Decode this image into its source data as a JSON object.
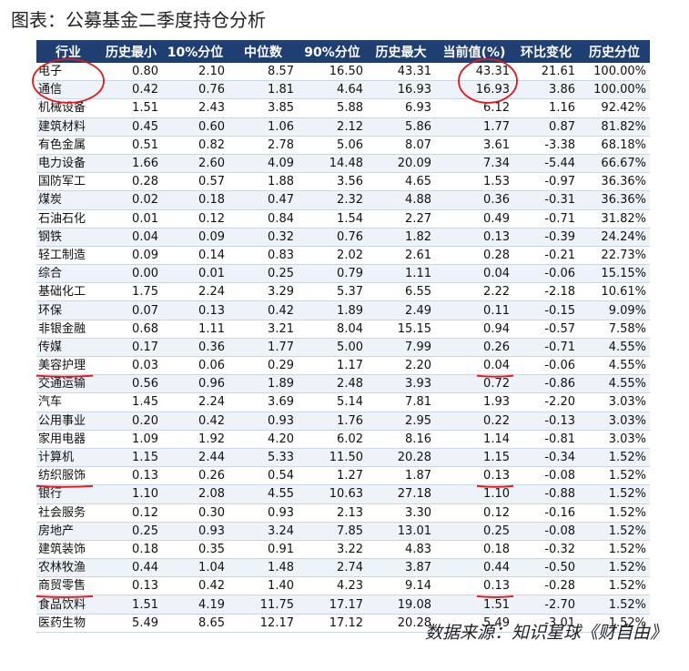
{
  "title": "图表：公募基金二季度持仓分析",
  "columns": [
    "行业",
    "历史最小",
    "10%分位",
    "中位数",
    "90%分位",
    "历史最大",
    "当前值(%)",
    "环比变化",
    "历史分位"
  ],
  "rows": [
    [
      "电子",
      "0.80",
      "2.10",
      "8.57",
      "16.50",
      "43.31",
      "43.31",
      "21.61",
      "100.00%"
    ],
    [
      "通信",
      "0.42",
      "0.76",
      "1.81",
      "4.64",
      "16.93",
      "16.93",
      "3.86",
      "100.00%"
    ],
    [
      "机械设备",
      "1.51",
      "2.43",
      "3.85",
      "5.88",
      "6.93",
      "6.12",
      "1.16",
      "92.42%"
    ],
    [
      "建筑材料",
      "0.45",
      "0.60",
      "1.06",
      "2.12",
      "5.86",
      "1.77",
      "0.87",
      "81.82%"
    ],
    [
      "有色金属",
      "0.51",
      "0.82",
      "2.78",
      "5.06",
      "8.07",
      "3.61",
      "-3.38",
      "68.18%"
    ],
    [
      "电力设备",
      "1.66",
      "2.60",
      "4.09",
      "14.48",
      "20.09",
      "7.34",
      "-5.44",
      "66.67%"
    ],
    [
      "国防军工",
      "0.28",
      "0.57",
      "1.88",
      "3.56",
      "4.65",
      "1.53",
      "-0.97",
      "36.36%"
    ],
    [
      "煤炭",
      "0.02",
      "0.18",
      "0.47",
      "2.32",
      "4.88",
      "0.36",
      "-0.31",
      "36.36%"
    ],
    [
      "石油石化",
      "0.01",
      "0.12",
      "0.84",
      "1.54",
      "2.27",
      "0.49",
      "-0.71",
      "31.82%"
    ],
    [
      "钢铁",
      "0.04",
      "0.09",
      "0.32",
      "0.76",
      "1.82",
      "0.13",
      "-0.39",
      "24.24%"
    ],
    [
      "轻工制造",
      "0.09",
      "0.14",
      "0.83",
      "2.02",
      "2.61",
      "0.28",
      "-0.21",
      "22.73%"
    ],
    [
      "综合",
      "0.00",
      "0.01",
      "0.25",
      "0.79",
      "1.11",
      "0.04",
      "-0.06",
      "15.15%"
    ],
    [
      "基础化工",
      "1.75",
      "2.24",
      "3.29",
      "5.37",
      "6.55",
      "2.22",
      "-2.18",
      "10.61%"
    ],
    [
      "环保",
      "0.07",
      "0.13",
      "0.42",
      "1.89",
      "2.49",
      "0.11",
      "-0.15",
      "9.09%"
    ],
    [
      "非银金融",
      "0.68",
      "1.11",
      "3.21",
      "8.04",
      "15.15",
      "0.94",
      "-0.57",
      "7.58%"
    ],
    [
      "传媒",
      "0.17",
      "0.36",
      "1.77",
      "5.00",
      "7.99",
      "0.26",
      "-0.71",
      "4.55%"
    ],
    [
      "美容护理",
      "0.03",
      "0.06",
      "0.29",
      "1.17",
      "2.20",
      "0.04",
      "-0.06",
      "4.55%"
    ],
    [
      "交通运输",
      "0.56",
      "0.96",
      "1.89",
      "2.48",
      "3.93",
      "0.72",
      "-0.86",
      "4.55%"
    ],
    [
      "汽车",
      "1.45",
      "2.24",
      "3.69",
      "5.14",
      "7.81",
      "1.93",
      "-2.20",
      "3.03%"
    ],
    [
      "公用事业",
      "0.20",
      "0.42",
      "0.93",
      "1.76",
      "2.95",
      "0.22",
      "-0.13",
      "3.03%"
    ],
    [
      "家用电器",
      "1.09",
      "1.92",
      "4.20",
      "6.02",
      "8.16",
      "1.14",
      "-0.81",
      "3.03%"
    ],
    [
      "计算机",
      "1.15",
      "2.44",
      "5.33",
      "11.50",
      "20.28",
      "1.15",
      "-0.34",
      "1.52%"
    ],
    [
      "纺织服饰",
      "0.13",
      "0.26",
      "0.54",
      "1.27",
      "1.87",
      "0.13",
      "-0.08",
      "1.52%"
    ],
    [
      "银行",
      "1.10",
      "2.08",
      "4.55",
      "10.63",
      "27.18",
      "1.10",
      "-0.88",
      "1.52%"
    ],
    [
      "社会服务",
      "0.12",
      "0.30",
      "0.93",
      "2.13",
      "3.30",
      "0.12",
      "-0.16",
      "1.52%"
    ],
    [
      "房地产",
      "0.25",
      "0.93",
      "3.24",
      "7.85",
      "13.01",
      "0.25",
      "-0.08",
      "1.52%"
    ],
    [
      "建筑装饰",
      "0.18",
      "0.35",
      "0.91",
      "3.22",
      "4.83",
      "0.18",
      "-0.32",
      "1.52%"
    ],
    [
      "农林牧渔",
      "0.44",
      "1.04",
      "1.48",
      "2.74",
      "3.87",
      "0.44",
      "-0.50",
      "1.52%"
    ],
    [
      "商贸零售",
      "0.13",
      "0.42",
      "1.40",
      "4.23",
      "9.14",
      "0.13",
      "-0.28",
      "1.52%"
    ],
    [
      "食品饮料",
      "1.51",
      "4.19",
      "11.75",
      "17.17",
      "19.08",
      "1.51",
      "-2.70",
      "1.52%"
    ],
    [
      "医药生物",
      "5.49",
      "8.65",
      "12.17",
      "17.12",
      "20.28",
      "5.49",
      "-3.01",
      "1.52%"
    ]
  ],
  "annotation_color": "#e01818",
  "source": "数据来源：知识星球《财自由》"
}
